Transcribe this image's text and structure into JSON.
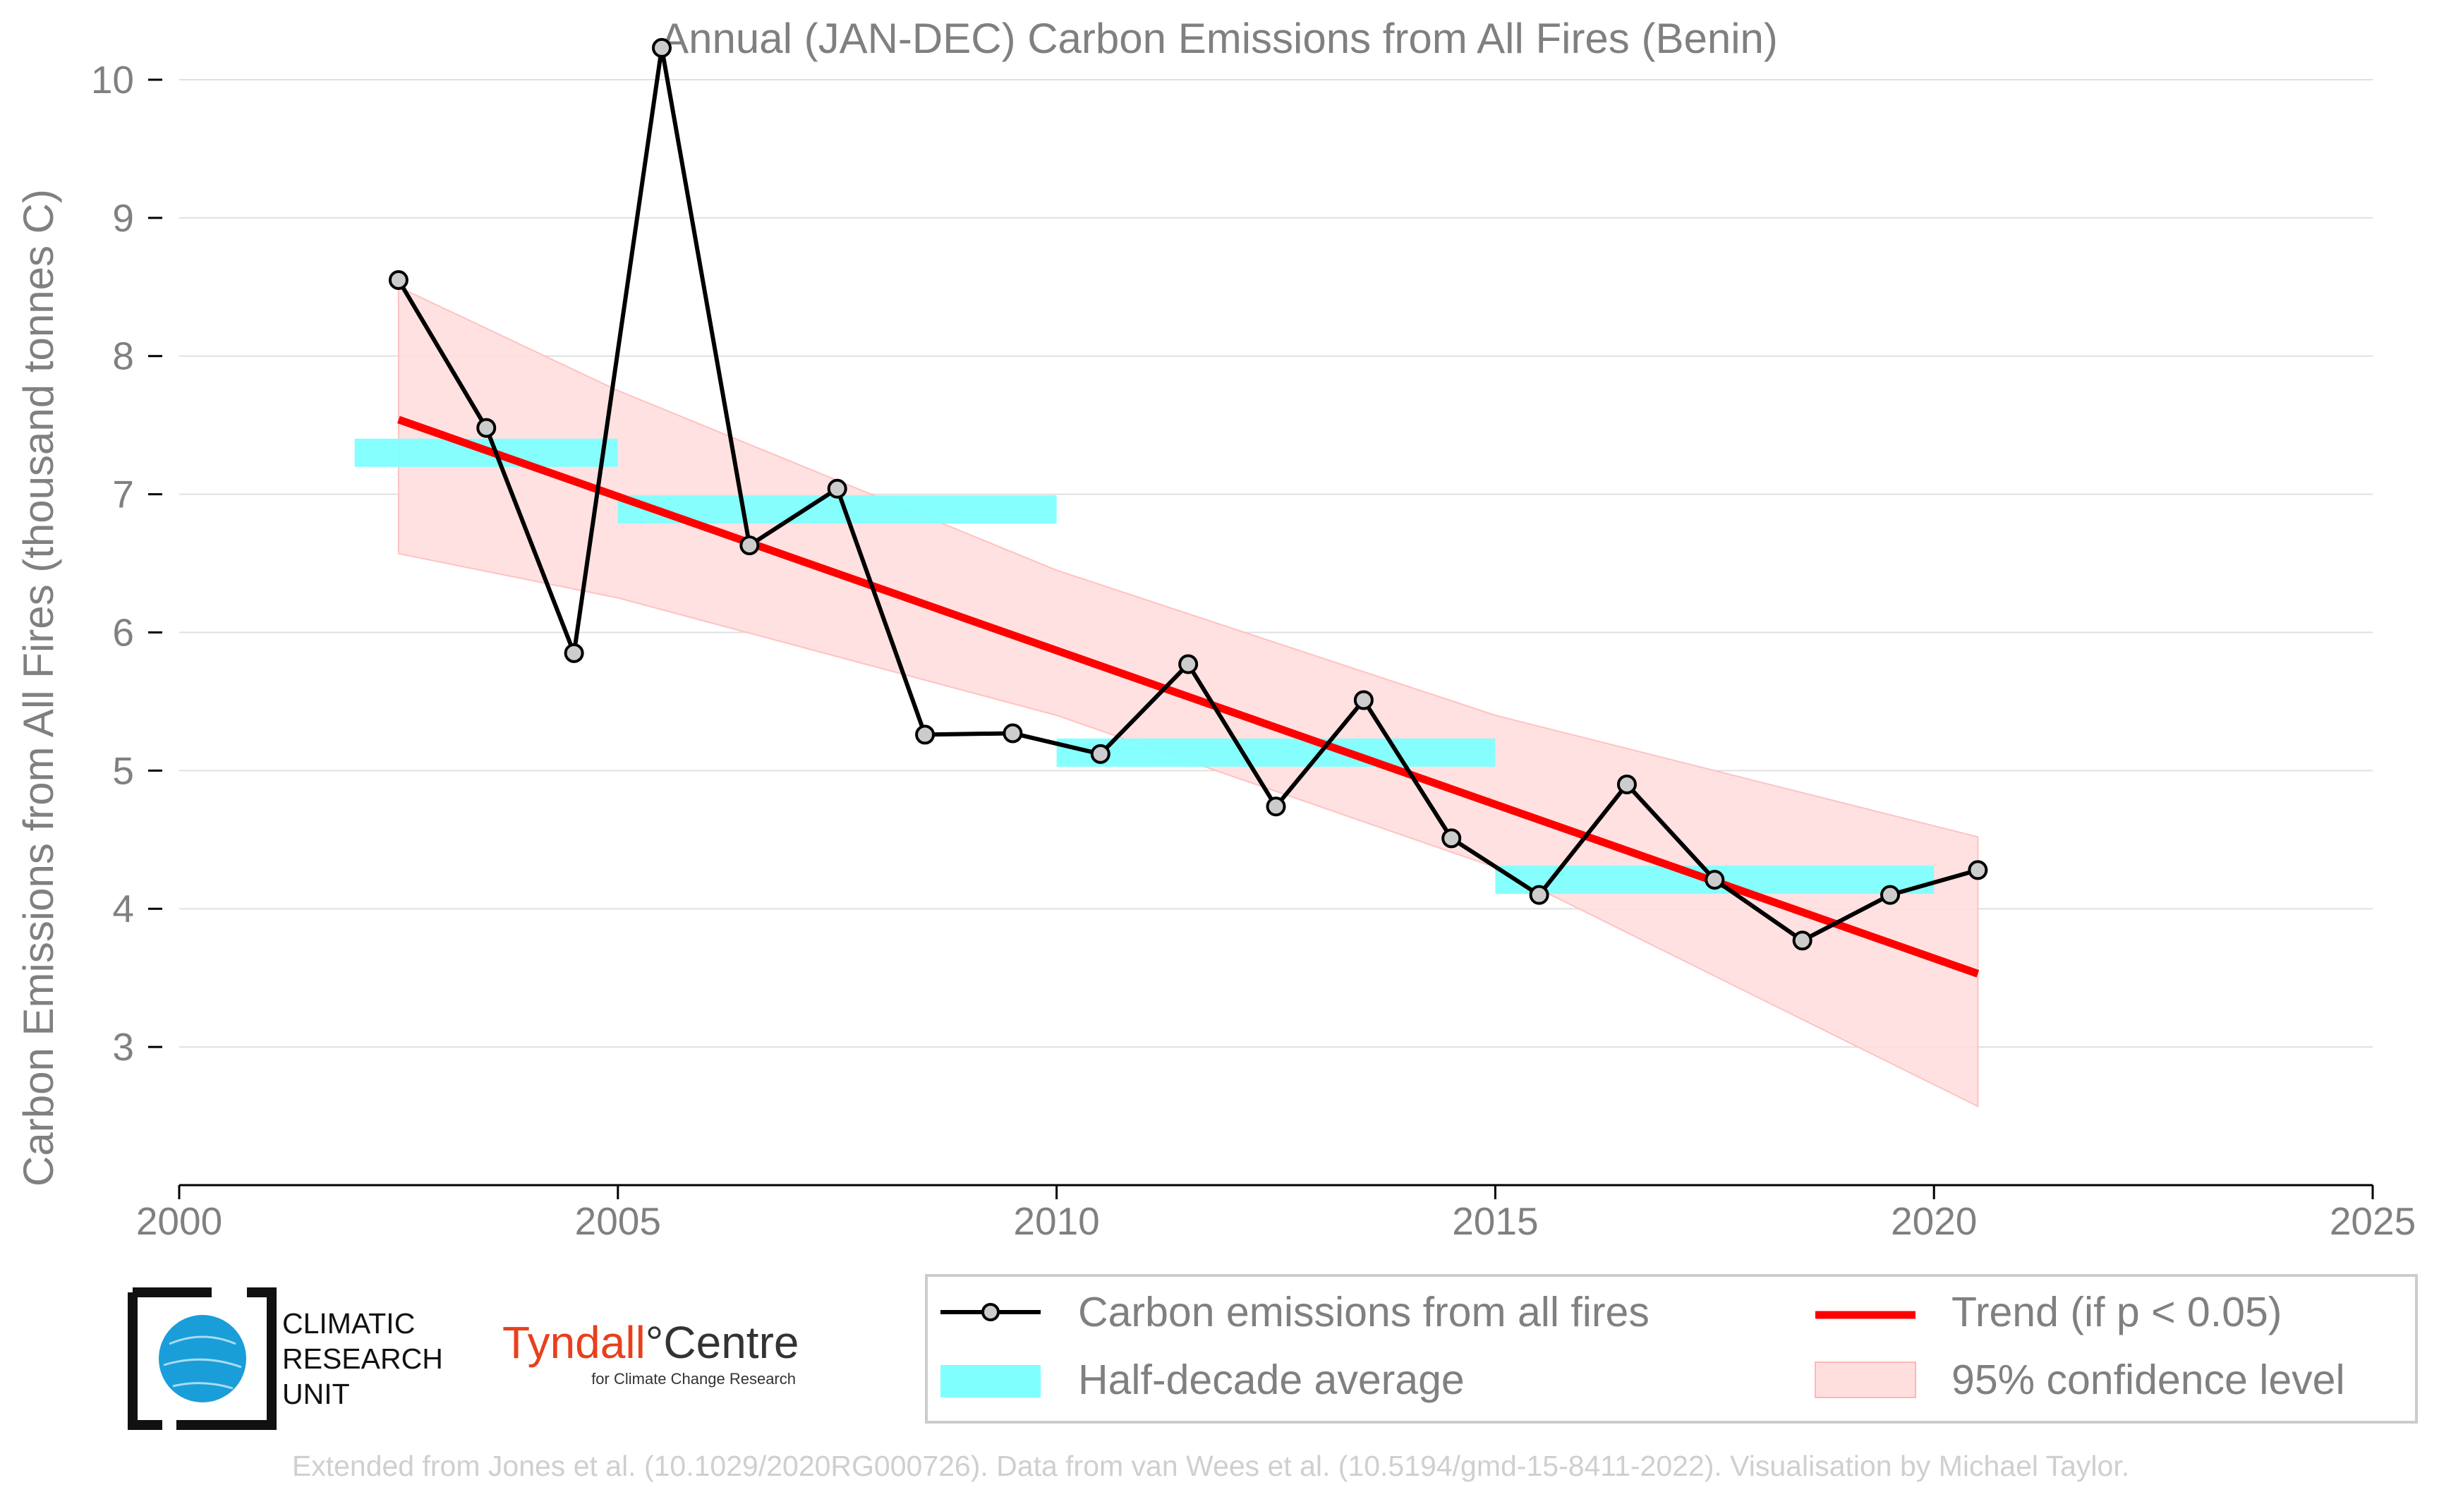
{
  "title": "Annual (JAN-DEC) Carbon Emissions from All Fires (Benin)",
  "colors": {
    "series_line": "#000000",
    "marker_fill": "#cccccc",
    "half_decade": "#80ffff",
    "trend": "#ff0000",
    "confidence": "#ffdede",
    "grid": "#e0e0e0",
    "text": "#808080"
  },
  "chart_data": {
    "type": "line",
    "title": "Annual (JAN-DEC) Carbon Emissions from All Fires (Benin)",
    "xlabel": "",
    "ylabel": "Carbon Emissions from All Fires (thousand tonnes C)",
    "xlim": [
      2000,
      2025
    ],
    "ylim": [
      2.0,
      10.5
    ],
    "x_ticks": [
      "2000",
      "2005",
      "2010",
      "2015",
      "2020",
      "2025"
    ],
    "y_ticks": [
      "3",
      "4",
      "5",
      "6",
      "7",
      "8",
      "9",
      "10"
    ],
    "grid": "horizontal",
    "legend_position": "bottom-right",
    "series": [
      {
        "name": "Carbon emissions from all fires",
        "x": [
          2002.5,
          2003.5,
          2004.5,
          2005.5,
          2006.5,
          2007.5,
          2008.5,
          2009.5,
          2010.5,
          2011.5,
          2012.5,
          2013.5,
          2014.5,
          2015.5,
          2016.5,
          2017.5,
          2018.5,
          2019.5,
          2020.5
        ],
        "values": [
          8.55,
          7.48,
          5.85,
          10.23,
          6.63,
          7.04,
          5.26,
          5.27,
          5.12,
          5.77,
          4.74,
          5.51,
          4.51,
          4.1,
          4.9,
          4.21,
          3.77,
          4.1,
          4.28
        ]
      }
    ],
    "half_decade_average": {
      "name": "Half-decade average",
      "periods": [
        {
          "start": 2002,
          "end": 2005,
          "value": 7.3
        },
        {
          "start": 2005,
          "end": 2010,
          "value": 6.89
        },
        {
          "start": 2010,
          "end": 2015,
          "value": 5.13
        },
        {
          "start": 2015,
          "end": 2020,
          "value": 4.21
        }
      ]
    },
    "trend": {
      "name": "Trend (if p < 0.05)",
      "x": [
        2002.5,
        2020.5
      ],
      "values": [
        7.54,
        3.53
      ]
    },
    "confidence": {
      "name": "95% confidence level",
      "x": [
        2002.5,
        2005,
        2010,
        2015,
        2020.5
      ],
      "upper": [
        8.5,
        7.75,
        6.45,
        5.4,
        4.52
      ],
      "lower": [
        6.57,
        6.25,
        5.4,
        4.3,
        2.57
      ]
    }
  },
  "logos": {
    "cru": [
      "CLIMATIC",
      "RESEARCH",
      "UNIT"
    ],
    "tyndall_name": "Tyndall",
    "tyndall_degree": "°",
    "tyndall_centre": "Centre",
    "tyndall_sub": "for Climate Change Research"
  },
  "footer": "Extended from Jones et al. (10.1029/2020RG000726). Data from van Wees et al. (10.5194/gmd-15-8411-2022). Visualisation by Michael Taylor."
}
